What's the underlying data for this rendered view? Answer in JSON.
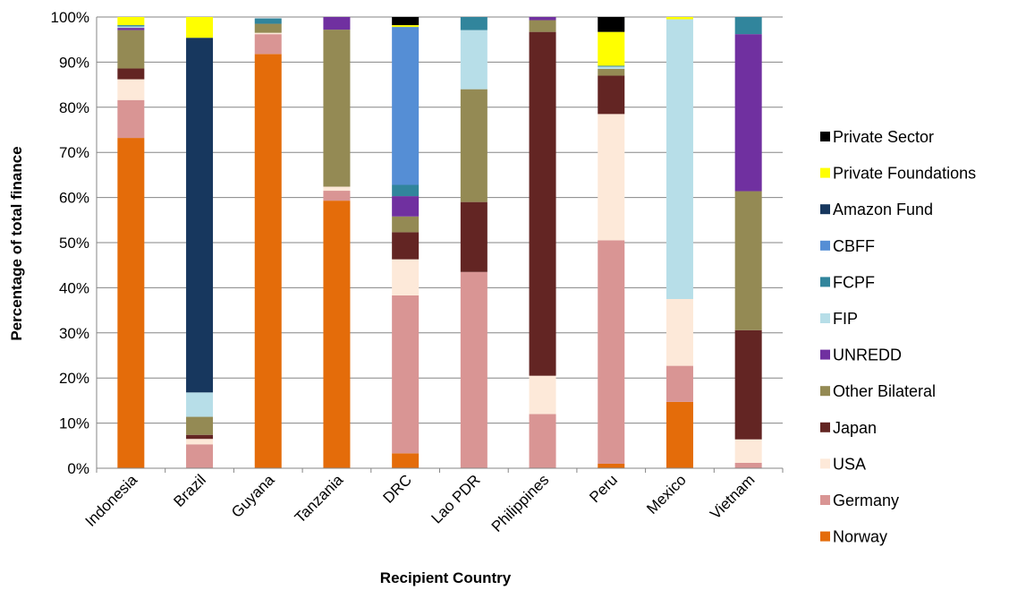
{
  "chart_data": {
    "type": "bar",
    "stacked": true,
    "title": "",
    "xlabel": "Recipient Country",
    "ylabel": "Percentage of total finance",
    "ylim": [
      0,
      100
    ],
    "ytick_labels": [
      "0%",
      "10%",
      "20%",
      "30%",
      "40%",
      "50%",
      "60%",
      "70%",
      "80%",
      "90%",
      "100%"
    ],
    "grid": true,
    "legend_position": "right",
    "categories": [
      "Indonesia",
      "Brazil",
      "Guyana",
      "Tanzania",
      "DRC",
      "Lao PDR",
      "Philippines",
      "Peru",
      "Mexico",
      "Vietnam"
    ],
    "series": [
      {
        "name": "Norway",
        "color": "#e46c0a",
        "values": [
          73.2,
          0,
          91.8,
          59.3,
          3.3,
          0,
          0,
          1,
          14.7,
          0
        ]
      },
      {
        "name": "Germany",
        "color": "#d99594",
        "values": [
          8.4,
          5.3,
          4.4,
          2.2,
          35,
          43.5,
          12,
          49.5,
          8,
          1.2
        ]
      },
      {
        "name": "USA",
        "color": "#fde9d9",
        "values": [
          4.6,
          1.2,
          0.3,
          0.9,
          8,
          0,
          8.5,
          28,
          14.8,
          5.2
        ]
      },
      {
        "name": "Japan",
        "color": "#632523",
        "values": [
          2.4,
          0.9,
          0,
          0,
          6,
          15.5,
          76.2,
          8.5,
          0,
          24.2
        ]
      },
      {
        "name": "Other Bilateral",
        "color": "#948a54",
        "values": [
          8.5,
          4,
          2,
          34.8,
          3.5,
          25,
          2.6,
          1.5,
          0,
          30.8
        ]
      },
      {
        "name": "UNREDD",
        "color": "#7030a0",
        "values": [
          0.5,
          0,
          0,
          2.8,
          4.5,
          0,
          0.7,
          0,
          0,
          34.8
        ]
      },
      {
        "name": "FIP",
        "color": "#b7dee8",
        "values": [
          0.3,
          5.4,
          0,
          0,
          0,
          13.1,
          0,
          0.5,
          62,
          0
        ]
      },
      {
        "name": "FCPF",
        "color": "#31859c",
        "values": [
          0.3,
          0,
          1.2,
          0,
          2.5,
          2.9,
          0,
          0.2,
          0,
          3.8
        ]
      },
      {
        "name": "CBFF",
        "color": "#558ed5",
        "values": [
          0,
          0,
          0,
          0,
          35,
          0,
          0,
          0,
          0,
          0
        ]
      },
      {
        "name": "Amazon Fund",
        "color": "#17375e",
        "values": [
          0,
          78.6,
          0,
          0,
          0,
          0,
          0,
          0,
          0,
          0
        ]
      },
      {
        "name": "Private Foundations",
        "color": "#ffff00",
        "values": [
          1.8,
          4.6,
          0,
          0,
          0.4,
          0,
          0,
          7.5,
          0.5,
          0
        ]
      },
      {
        "name": "Private Sector",
        "color": "#000000",
        "values": [
          0,
          0,
          0,
          0,
          1.8,
          0,
          0,
          3.3,
          0,
          0
        ]
      }
    ]
  }
}
